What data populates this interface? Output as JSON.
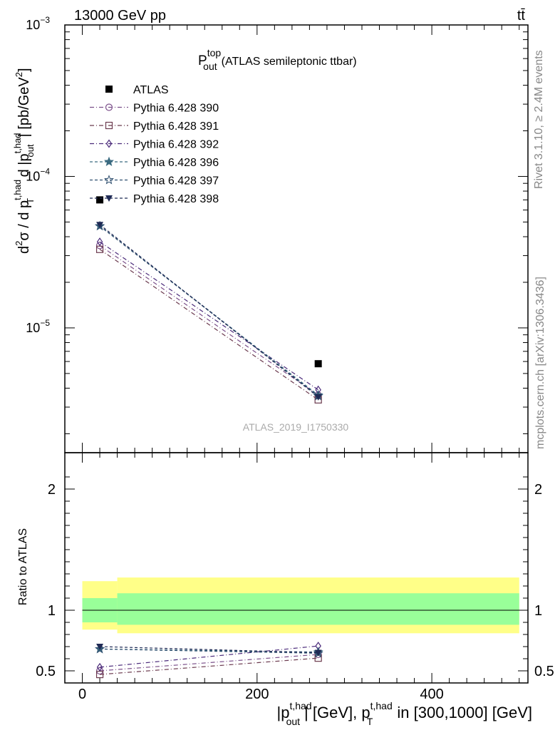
{
  "header": {
    "energy_label": "13000 GeV pp",
    "process_label": "tt̄"
  },
  "side_labels": {
    "rivet": "Rivet 3.1.10, ≥ 2.4M events",
    "mcplots": "mcplots.cern.ch [arXiv:1306.3436]"
  },
  "chart_data": [
    {
      "type": "scatter",
      "panel": "main",
      "title_main": "P",
      "title_sup": "top",
      "title_sub": "out",
      "title_rest": "(ATLAS semileptonic ttbar)",
      "analysis_label": "ATLAS_2019_I1750330",
      "ylabel_parts": [
        "d",
        "2",
        "σ / d p",
        "t,had",
        "T",
        " d |p",
        "t,had",
        "out",
        "| [pb/GeV",
        "2",
        "]"
      ],
      "yscale": "log",
      "ylim": [
        1.5e-06,
        0.001
      ],
      "xlim": [
        -20,
        510
      ],
      "y_tick_labels": [
        {
          "value": 1e-05,
          "base": "10",
          "exp": "−5"
        },
        {
          "value": 0.0001,
          "base": "10",
          "exp": "−4"
        },
        {
          "value": 0.001,
          "base": "10",
          "exp": "−3"
        }
      ],
      "series": [
        {
          "name": "ATLAS",
          "marker": "square-filled",
          "color": "#000000",
          "x": [
            20,
            270
          ],
          "y": [
            7e-05,
            5.8e-06
          ]
        },
        {
          "name": "Pythia 6.428 390",
          "marker": "circle-open",
          "color": "#7b4f8a",
          "x": [
            20,
            270
          ],
          "y": [
            3.5e-05,
            3.6e-06
          ]
        },
        {
          "name": "Pythia 6.428 391",
          "marker": "square-open",
          "color": "#6b3a4e",
          "x": [
            20,
            270
          ],
          "y": [
            3.3e-05,
            3.35e-06
          ]
        },
        {
          "name": "Pythia 6.428 392",
          "marker": "diamond-open",
          "color": "#4a2a7a",
          "x": [
            20,
            270
          ],
          "y": [
            3.7e-05,
            3.9e-06
          ]
        },
        {
          "name": "Pythia 6.428 396",
          "marker": "star-filled",
          "color": "#3a6a80",
          "x": [
            20,
            270
          ],
          "y": [
            4.7e-05,
            3.6e-06
          ]
        },
        {
          "name": "Pythia 6.428 397",
          "marker": "star-open",
          "color": "#2f4f6f",
          "x": [
            20,
            270
          ],
          "y": [
            4.7e-05,
            3.55e-06
          ]
        },
        {
          "name": "Pythia 6.428 398",
          "marker": "triangle-down-filled",
          "color": "#1f2a55",
          "x": [
            20,
            270
          ],
          "y": [
            4.8e-05,
            3.5e-06
          ]
        }
      ]
    },
    {
      "type": "scatter",
      "panel": "ratio",
      "ylabel": "Ratio to ATLAS",
      "ylim": [
        0.4,
        2.3
      ],
      "xlim": [
        -20,
        510
      ],
      "x_ticks": [
        0,
        200,
        400
      ],
      "y_ticks": [
        0.5,
        1,
        2
      ],
      "y_tick_labels": [
        "0.5",
        "1",
        "2"
      ],
      "xlabel_parts": [
        "|p",
        "t,had",
        "out",
        "| [GeV], p",
        "t,had",
        "T",
        " in [300,1000] [GeV]"
      ],
      "bands": [
        {
          "x": [
            0,
            40
          ],
          "green": [
            0.9,
            1.1
          ],
          "yellow": [
            0.84,
            1.24
          ]
        },
        {
          "x": [
            40,
            500
          ],
          "green": [
            0.88,
            1.14
          ],
          "yellow": [
            0.81,
            1.27
          ]
        }
      ],
      "series": [
        {
          "name": "Pythia 6.428 390",
          "x": [
            20,
            270
          ],
          "y": [
            0.5,
            0.635
          ]
        },
        {
          "name": "Pythia 6.428 391",
          "x": [
            20,
            270
          ],
          "y": [
            0.47,
            0.605
          ]
        },
        {
          "name": "Pythia 6.428 392",
          "x": [
            20,
            270
          ],
          "y": [
            0.53,
            0.705
          ]
        },
        {
          "name": "Pythia 6.428 396",
          "x": [
            20,
            270
          ],
          "y": [
            0.68,
            0.655
          ]
        },
        {
          "name": "Pythia 6.428 397",
          "x": [
            20,
            270
          ],
          "y": [
            0.68,
            0.645
          ]
        },
        {
          "name": "Pythia 6.428 398",
          "x": [
            20,
            270
          ],
          "y": [
            0.7,
            0.65
          ]
        }
      ]
    }
  ]
}
